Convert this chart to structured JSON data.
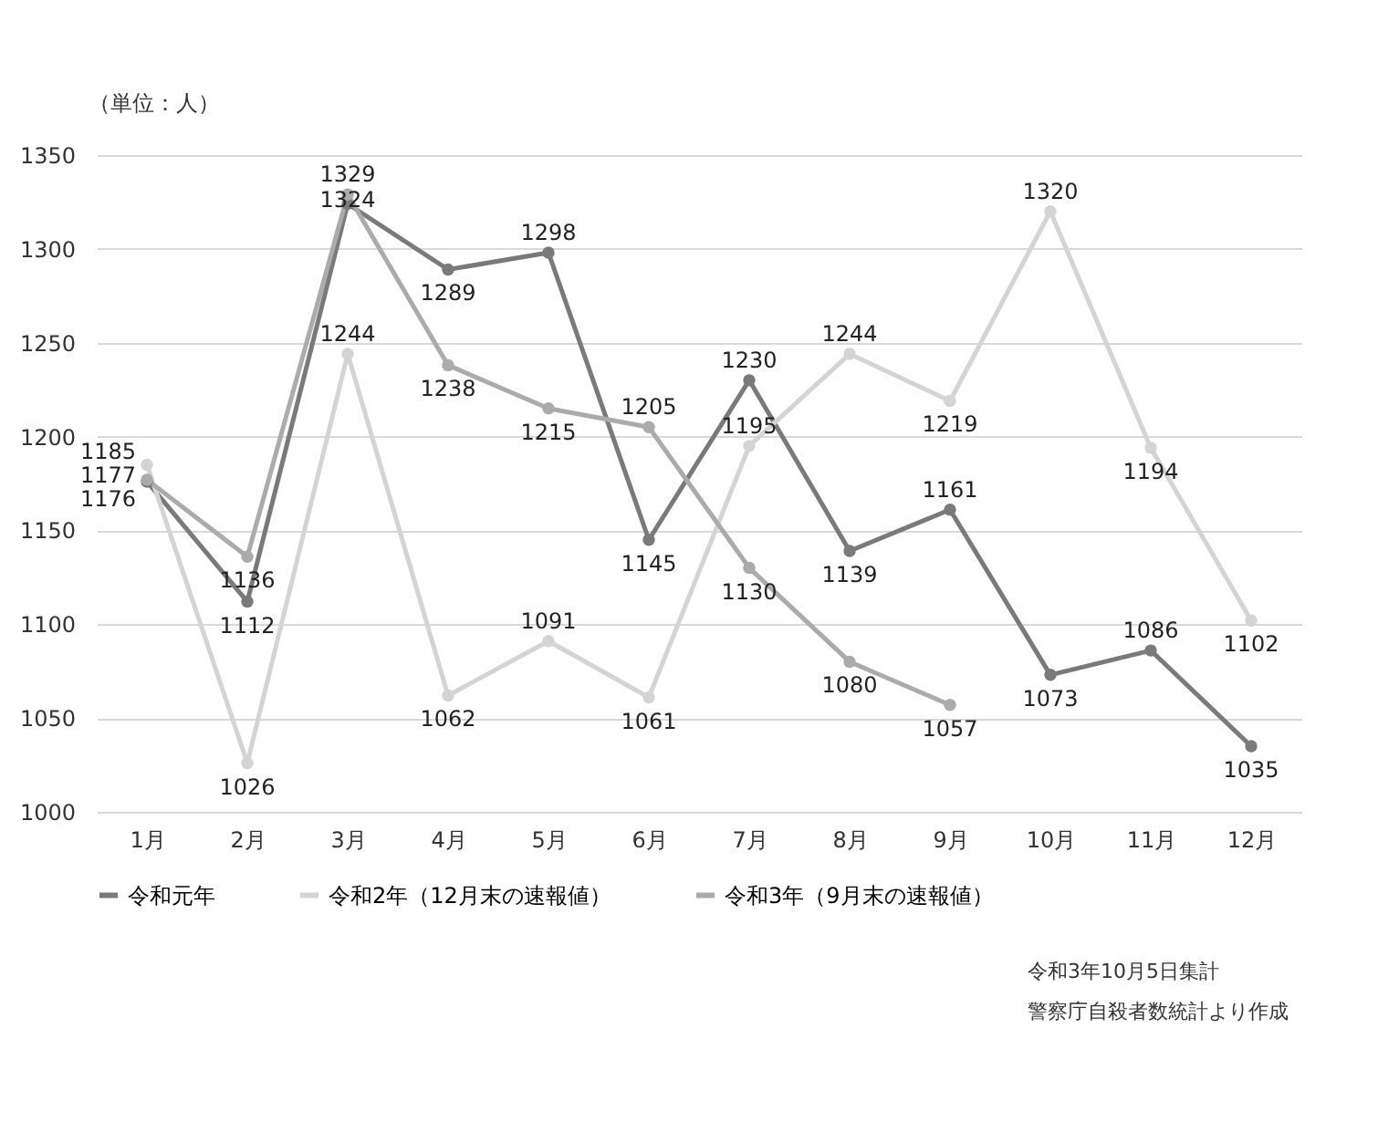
{
  "chart_data": {
    "type": "line",
    "ylabel": "（単位：人）",
    "categories": [
      "1月",
      "2月",
      "3月",
      "4月",
      "5月",
      "6月",
      "7月",
      "8月",
      "9月",
      "10月",
      "11月",
      "12月"
    ],
    "series": [
      {
        "name": "令和元年",
        "color": "#7a7a7a",
        "values": [
          1176,
          1112,
          1324,
          1289,
          1298,
          1145,
          1230,
          1139,
          1161,
          1073,
          1086,
          1035
        ]
      },
      {
        "name": "令和2年（12月末の速報値）",
        "color": "#d4d4d4",
        "values": [
          1185,
          1026,
          1244,
          1062,
          1091,
          1061,
          1195,
          1244,
          1219,
          1320,
          1194,
          1102
        ]
      },
      {
        "name": "令和3年（9月末の速報値）",
        "color": "#ababab",
        "values": [
          1177,
          1136,
          1329,
          1238,
          1215,
          1205,
          1130,
          1080,
          1057,
          null,
          null,
          null
        ]
      }
    ],
    "ylim": [
      1000,
      1350
    ],
    "yticks": [
      1000,
      1050,
      1100,
      1150,
      1200,
      1250,
      1300,
      1350
    ],
    "grid": "y",
    "legend": "bottom",
    "marker": "circle",
    "line_style": "solid",
    "data_labels": true,
    "annotations": [
      "令和3年10月5日集計",
      "警察庁自殺者数統計より作成"
    ]
  }
}
